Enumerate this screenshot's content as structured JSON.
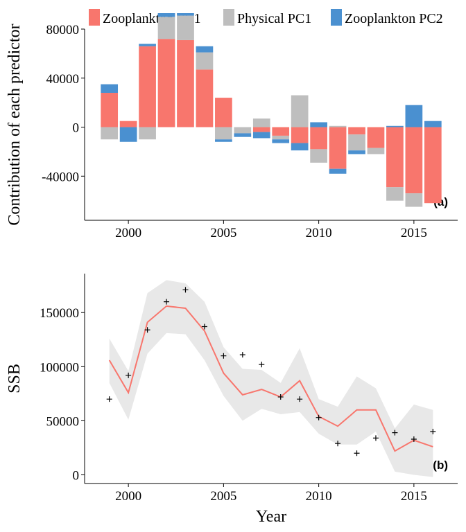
{
  "colors": {
    "zoo_pc1": "#F8766D",
    "physical_pc1": "#BEBEBE",
    "zoo_pc2": "#4A90D0",
    "ssb_line": "#F8766D",
    "ssb_ribbon": "#E8E8E8",
    "axis": "#000000"
  },
  "legend": {
    "items": [
      {
        "label": "Zooplankton PC1",
        "color_key": "zoo_pc1"
      },
      {
        "label": "Physical PC1",
        "color_key": "physical_pc1"
      },
      {
        "label": "Zooplankton PC2",
        "color_key": "zoo_pc2"
      }
    ]
  },
  "chart_data": [
    {
      "type": "bar",
      "stacked": true,
      "panel_label": "(a)",
      "ylabel": "Contribution of each predictor",
      "xlabel": "",
      "ylim": [
        -76000,
        80000
      ],
      "xlim": [
        1997.7,
        2017.3
      ],
      "yticks": [
        -40000,
        0,
        40000,
        80000
      ],
      "ytick_labels": [
        "-40000",
        "0",
        "40000",
        "80000"
      ],
      "xticks": [
        2000,
        2005,
        2010,
        2015
      ],
      "xtick_labels": [
        "2000",
        "2005",
        "2010",
        "2015"
      ],
      "x": [
        1999,
        2000,
        2001,
        2002,
        2003,
        2004,
        2005,
        2006,
        2007,
        2008,
        2009,
        2010,
        2011,
        2012,
        2013,
        2014,
        2015,
        2016
      ],
      "series": [
        {
          "name": "Zooplankton PC1",
          "color_key": "zoo_pc1",
          "values": [
            28000,
            5000,
            66000,
            72000,
            71000,
            47000,
            24000,
            0,
            -4000,
            -7000,
            -13000,
            -18000,
            -34000,
            -6000,
            -17000,
            -49000,
            -54000,
            -62000
          ]
        },
        {
          "name": "Physical PC1",
          "color_key": "physical_pc1",
          "values": [
            -10000,
            0,
            -10000,
            18000,
            20000,
            14000,
            -10000,
            -5000,
            7000,
            -3000,
            26000,
            -11000,
            1000,
            -13000,
            -5000,
            -11000,
            -11000,
            0
          ]
        },
        {
          "name": "Zooplankton PC2",
          "color_key": "zoo_pc2",
          "values": [
            7000,
            -12000,
            2000,
            3000,
            2000,
            5000,
            -2000,
            -3000,
            -5000,
            -3000,
            -6000,
            4000,
            -4000,
            -3000,
            0,
            1000,
            18000,
            5000
          ]
        }
      ],
      "grid": false,
      "legend_position": "top"
    },
    {
      "type": "line",
      "panel_label": "(b)",
      "ylabel": "SSB",
      "xlabel": "Year",
      "ylim": [
        -8000,
        186000
      ],
      "xlim": [
        1997.7,
        2017.3
      ],
      "yticks": [
        0,
        50000,
        100000,
        150000
      ],
      "ytick_labels": [
        "0",
        "50000",
        "100000",
        "150000"
      ],
      "xticks": [
        2000,
        2005,
        2010,
        2015
      ],
      "xtick_labels": [
        "2000",
        "2005",
        "2010",
        "2015"
      ],
      "x": [
        1999,
        2000,
        2001,
        2002,
        2003,
        2004,
        2005,
        2006,
        2007,
        2008,
        2009,
        2010,
        2011,
        2012,
        2013,
        2014,
        2015,
        2016
      ],
      "series": [
        {
          "name": "",
          "kind": "line",
          "color_key": "ssb_line",
          "values": [
            106000,
            76000,
            141000,
            156000,
            154000,
            133000,
            94000,
            74000,
            79000,
            72000,
            87000,
            54000,
            45000,
            60000,
            60000,
            22000,
            32000,
            26000
          ]
        },
        {
          "name": "",
          "kind": "ribbon_lower",
          "color_key": "ssb_ribbon",
          "values": [
            85000,
            51000,
            112000,
            131000,
            130000,
            106000,
            73000,
            50000,
            61000,
            56000,
            58000,
            38000,
            28000,
            28000,
            40000,
            3000,
            0,
            -2000
          ]
        },
        {
          "name": "",
          "kind": "ribbon_upper",
          "color_key": "ssb_ribbon",
          "values": [
            126000,
            96000,
            168000,
            180000,
            177000,
            160000,
            118000,
            98000,
            97000,
            85000,
            117000,
            70000,
            63000,
            91000,
            80000,
            43000,
            65000,
            60000
          ]
        },
        {
          "name": "",
          "kind": "points",
          "marker": "+",
          "values": [
            70000,
            92000,
            134000,
            160000,
            171000,
            137000,
            110000,
            111000,
            102000,
            72000,
            70000,
            53000,
            29000,
            20000,
            34000,
            39000,
            33000,
            40000
          ]
        }
      ],
      "grid": false
    }
  ]
}
